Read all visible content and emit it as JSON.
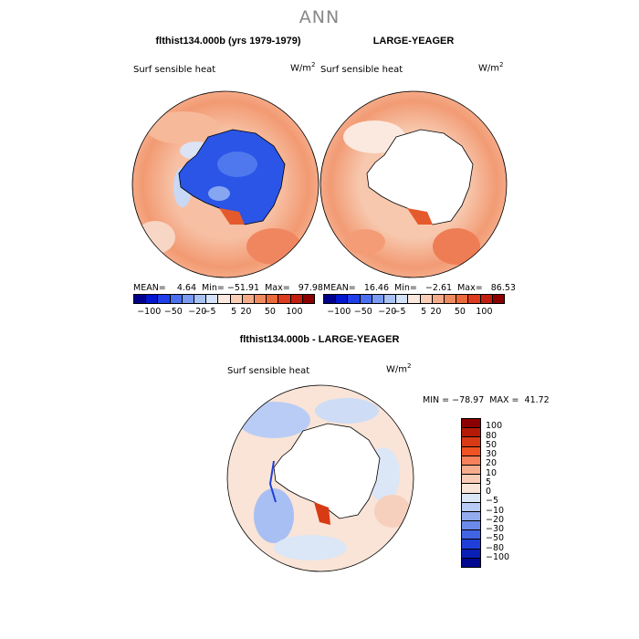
{
  "season": "ANN",
  "colors": {
    "scale": [
      "#00008c",
      "#0016d0",
      "#1f3fe8",
      "#4a6ff0",
      "#7b9af2",
      "#a9c2f4",
      "#d3e2f8",
      "#fbe9df",
      "#f8cdb6",
      "#f5ab8a",
      "#f08a60",
      "#ea6a3a",
      "#dc3b1f",
      "#c21e10",
      "#8b0000"
    ],
    "diff_scale": [
      "#8b0000",
      "#b51a08",
      "#d83a15",
      "#ef5323",
      "#f5825a",
      "#f6ad8d",
      "#f8ccb6",
      "#f9e4d7",
      "#dbe6f7",
      "#b9ccf5",
      "#93acef",
      "#6b8ae9",
      "#4164e3",
      "#1f3fd8",
      "#0a1fb6",
      "#000890"
    ]
  },
  "top_left": {
    "title": "flthist134.000b (yrs 1979-1979)",
    "variable": "Surf sensible heat",
    "units": "W/m",
    "units_exp": "2",
    "stats": "MEAN=    4.64  Min= −51.91  Max=   97.98"
  },
  "top_right": {
    "title": "LARGE-YEAGER",
    "variable": "Surf sensible heat",
    "units": "W/m",
    "units_exp": "2",
    "stats": "MEAN=   16.46  Min=   −2.61  Max=   86.53"
  },
  "colorbar_ticks": [
    "−100",
    "−50",
    "−20",
    "−5",
    "5",
    "20",
    "50",
    "100"
  ],
  "bottom": {
    "title": "flthist134.000b - LARGE-YEAGER",
    "variable": "Surf sensible heat",
    "units": "W/m",
    "units_exp": "2",
    "minmax": "MIN = −78.97  MAX =  41.72",
    "ticks": [
      "100",
      "80",
      "50",
      "30",
      "20",
      "10",
      "5",
      "0",
      "−5",
      "−10",
      "−20",
      "−30",
      "−50",
      "−80",
      "−100"
    ]
  }
}
